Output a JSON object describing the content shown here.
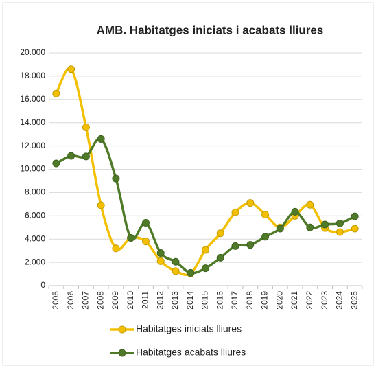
{
  "chart_data": {
    "type": "line",
    "title": "AMB. Habitatges iniciats i acabats lliures",
    "categories": [
      "2005",
      "2006",
      "2007",
      "2008",
      "2009",
      "2010",
      "2011",
      "2012",
      "2013",
      "2014",
      "2015",
      "2016",
      "2017",
      "2018",
      "2019",
      "2020",
      "2021",
      "2022",
      "2023",
      "2024",
      "2025"
    ],
    "series": [
      {
        "name": "Habitatges iniciats lliures",
        "color": "#f2c000",
        "values": [
          16500,
          18600,
          13600,
          6900,
          3200,
          4100,
          3800,
          2100,
          1250,
          1050,
          3070,
          4500,
          6300,
          7100,
          6100,
          5000,
          6000,
          6950,
          4950,
          4600,
          4900
        ]
      },
      {
        "name": "Habitatges acabats lliures",
        "color": "#4f7a28",
        "values": [
          10500,
          11150,
          11100,
          12600,
          9200,
          4100,
          5400,
          2800,
          2050,
          1100,
          1500,
          2400,
          3400,
          3500,
          4200,
          4900,
          6350,
          5000,
          5250,
          5350,
          5950
        ]
      }
    ],
    "ylim": [
      0,
      20000
    ],
    "yticks": [
      0,
      {
        "value": 2000,
        "label": "2.000"
      },
      {
        "value": 4000,
        "label": "4.000"
      },
      {
        "value": 6000,
        "label": "6.000"
      },
      {
        "value": 8000,
        "label": "8.000"
      },
      {
        "value": 10000,
        "label": "10.000"
      },
      {
        "value": 12000,
        "label": "12.000"
      },
      {
        "value": 14000,
        "label": "14.000"
      },
      {
        "value": 16000,
        "label": "16.000"
      },
      {
        "value": 18000,
        "label": "18.000"
      },
      {
        "value": 20000,
        "label": "20.000"
      }
    ],
    "grid": true,
    "legend": "bottom"
  }
}
